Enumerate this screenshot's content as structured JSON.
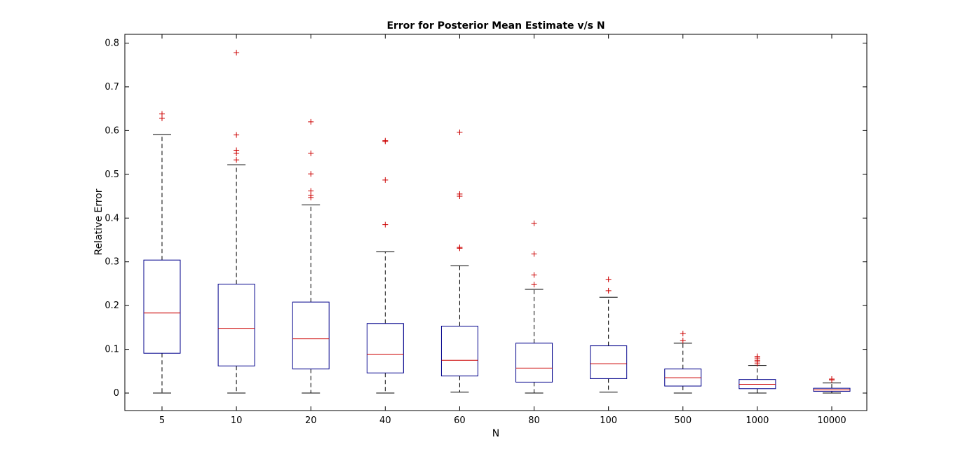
{
  "chart_data": {
    "type": "box",
    "title": "Error for Posterior Mean Estimate v/s N",
    "xlabel": "N",
    "ylabel": "Relative Error",
    "ylim": [
      -0.04,
      0.82
    ],
    "yticks": [
      0,
      0.1,
      0.2,
      0.3,
      0.4,
      0.5,
      0.6,
      0.7,
      0.8
    ],
    "ytick_labels": [
      "0",
      "0.1",
      "0.2",
      "0.3",
      "0.4",
      "0.5",
      "0.6",
      "0.7",
      "0.8"
    ],
    "grid": false,
    "categories": [
      "5",
      "10",
      "20",
      "40",
      "60",
      "80",
      "100",
      "500",
      "1000",
      "10000"
    ],
    "boxes": [
      {
        "whisker_low": 0.0,
        "q1": 0.091,
        "median": 0.183,
        "q3": 0.304,
        "whisker_high": 0.591,
        "outliers": [
          0.628,
          0.638
        ]
      },
      {
        "whisker_low": 0.0,
        "q1": 0.062,
        "median": 0.148,
        "q3": 0.249,
        "whisker_high": 0.522,
        "outliers": [
          0.533,
          0.548,
          0.555,
          0.59,
          0.778
        ]
      },
      {
        "whisker_low": 0.0,
        "q1": 0.055,
        "median": 0.124,
        "q3": 0.208,
        "whisker_high": 0.43,
        "outliers": [
          0.447,
          0.452,
          0.462,
          0.501,
          0.548,
          0.62
        ]
      },
      {
        "whisker_low": 0.0,
        "q1": 0.046,
        "median": 0.089,
        "q3": 0.159,
        "whisker_high": 0.323,
        "outliers": [
          0.385,
          0.487,
          0.575,
          0.577
        ]
      },
      {
        "whisker_low": 0.002,
        "q1": 0.039,
        "median": 0.075,
        "q3": 0.153,
        "whisker_high": 0.291,
        "outliers": [
          0.331,
          0.333,
          0.45,
          0.455,
          0.596
        ]
      },
      {
        "whisker_low": 0.0,
        "q1": 0.025,
        "median": 0.057,
        "q3": 0.114,
        "whisker_high": 0.237,
        "outliers": [
          0.248,
          0.27,
          0.318,
          0.388
        ]
      },
      {
        "whisker_low": 0.002,
        "q1": 0.033,
        "median": 0.067,
        "q3": 0.108,
        "whisker_high": 0.219,
        "outliers": [
          0.234,
          0.26
        ]
      },
      {
        "whisker_low": 0.0,
        "q1": 0.016,
        "median": 0.035,
        "q3": 0.055,
        "whisker_high": 0.114,
        "outliers": [
          0.12,
          0.136
        ]
      },
      {
        "whisker_low": 0.0,
        "q1": 0.01,
        "median": 0.02,
        "q3": 0.031,
        "whisker_high": 0.063,
        "outliers": [
          0.067,
          0.071,
          0.075,
          0.08,
          0.084
        ]
      },
      {
        "whisker_low": 0.0,
        "q1": 0.004,
        "median": 0.007,
        "q3": 0.011,
        "whisker_high": 0.023,
        "outliers": [
          0.03,
          0.032
        ]
      }
    ],
    "colors": {
      "box": "#00008b",
      "median": "#cc0000",
      "whisker": "#000000",
      "outlier": "#cc0000",
      "axis": "#000000"
    }
  }
}
